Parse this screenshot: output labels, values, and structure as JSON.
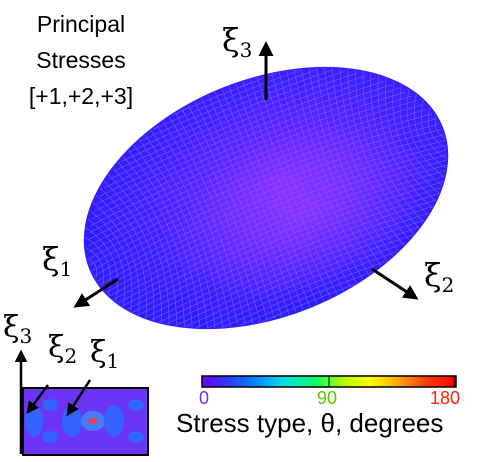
{
  "title_lines": [
    "Principal",
    "Stresses",
    "[+1,+2,+3]"
  ],
  "axes": {
    "xi1": {
      "symbol": "ξ",
      "index": "1"
    },
    "xi2": {
      "symbol": "ξ",
      "index": "2"
    },
    "xi3": {
      "symbol": "ξ",
      "index": "3"
    }
  },
  "inset_axes": {
    "xi3": {
      "symbol": "ξ",
      "index": "3"
    },
    "xi2": {
      "symbol": "ξ",
      "index": "2"
    },
    "xi1": {
      "symbol": "ξ",
      "index": "1"
    }
  },
  "colorbar": {
    "ticks": [
      {
        "value": "0",
        "color": "#7a24ff"
      },
      {
        "value": "90",
        "color": "#58c800"
      },
      {
        "value": "180",
        "color": "#ff2200"
      }
    ],
    "label": "Stress type, θ, degrees",
    "gradient": [
      "#6a00ff",
      "#2a3cff",
      "#0090ff",
      "#00e0e0",
      "#00ff70",
      "#aaff00",
      "#ffff00",
      "#ffaa00",
      "#ff4000",
      "#ff0000"
    ]
  },
  "colors": {
    "ellipsoid_base": "#2f1fff",
    "ellipsoid_accent": "#9a30ff",
    "mesh_line": "#6a4dff",
    "inset_fill": "#6a35f5"
  }
}
